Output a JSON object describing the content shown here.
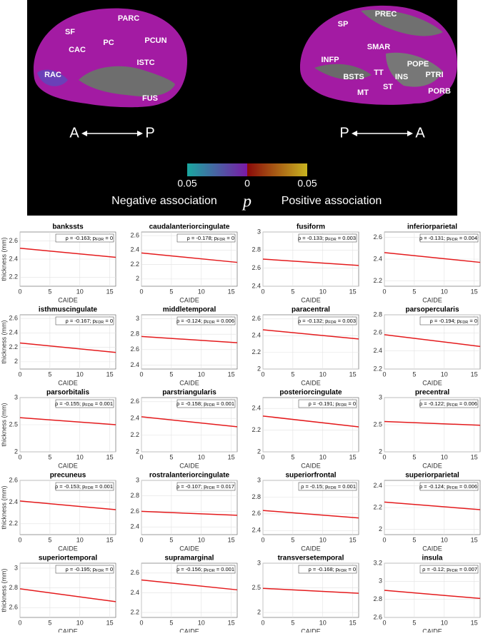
{
  "brain": {
    "left_labels": [
      "SF",
      "PARC",
      "CAC",
      "PC",
      "PCUN",
      "ISTC",
      "RAC",
      "FUS"
    ],
    "right_labels": [
      "SP",
      "PREC",
      "SMAR",
      "INFP",
      "POPE",
      "BSTS",
      "TT",
      "INS",
      "PTRI",
      "ST",
      "MT",
      "PORB"
    ],
    "left_orientation": [
      "A",
      "P"
    ],
    "right_orientation": [
      "P",
      "A"
    ],
    "colorbar_ticks": [
      "0.05",
      "0",
      "0.05"
    ],
    "negative_label": "Negative association",
    "symbol": "p",
    "positive_label": "Positive association"
  },
  "chart_data": [
    {
      "type": "scatter",
      "title": "bankssts",
      "annotation": {
        "text": "ρ = -0.163; p",
        "sub": "FDR",
        "tail": " = 0"
      },
      "ylabel": "thickness (mm)",
      "xlabel": "CAIDE",
      "xlim": [
        0,
        16
      ],
      "xticks": [
        0,
        5,
        10,
        15
      ],
      "ylim": [
        2.1,
        2.7
      ],
      "yticks": [
        2.2,
        2.4,
        2.6
      ],
      "grid": true,
      "fit": {
        "color": "#e41a1c",
        "x": [
          0,
          16
        ],
        "values": [
          2.52,
          2.42
        ]
      }
    },
    {
      "type": "scatter",
      "title": "caudalanteriorcingulate",
      "annotation": {
        "text": "ρ = -0.178; p",
        "sub": "FDR",
        "tail": " = 0"
      },
      "xlabel": "CAIDE",
      "xlim": [
        0,
        16
      ],
      "xticks": [
        0,
        5,
        10,
        15
      ],
      "ylim": [
        1.9,
        2.65
      ],
      "yticks": [
        2,
        2.2,
        2.4,
        2.6
      ],
      "grid": true,
      "fit": {
        "color": "#e41a1c",
        "x": [
          0,
          16
        ],
        "values": [
          2.36,
          2.23
        ]
      }
    },
    {
      "type": "scatter",
      "title": "fusiform",
      "annotation": {
        "text": "ρ = -0.133; p",
        "sub": "FDR",
        "tail": " = 0.003"
      },
      "xlabel": "CAIDE",
      "xlim": [
        0,
        16
      ],
      "xticks": [
        0,
        5,
        10,
        15
      ],
      "ylim": [
        2.4,
        3
      ],
      "yticks": [
        2.4,
        2.6,
        2.8,
        3
      ],
      "grid": true,
      "fit": {
        "color": "#e41a1c",
        "x": [
          0,
          16
        ],
        "values": [
          2.7,
          2.63
        ]
      }
    },
    {
      "type": "scatter",
      "title": "inferiorparietal",
      "annotation": {
        "text": "ρ = -0.131; p",
        "sub": "FDR",
        "tail": " = 0.004"
      },
      "xlabel": "CAIDE",
      "xlim": [
        0,
        16
      ],
      "xticks": [
        0,
        5,
        10,
        15
      ],
      "ylim": [
        2.15,
        2.65
      ],
      "yticks": [
        2.2,
        2.4,
        2.6
      ],
      "grid": true,
      "fit": {
        "color": "#e41a1c",
        "x": [
          0,
          16
        ],
        "values": [
          2.46,
          2.37
        ]
      }
    },
    {
      "type": "scatter",
      "title": "isthmuscingulate",
      "annotation": {
        "text": "ρ = -0.167; p",
        "sub": "FDR",
        "tail": " = 0"
      },
      "ylabel": "thickness (mm)",
      "xlabel": "CAIDE",
      "xlim": [
        0,
        16
      ],
      "xticks": [
        0,
        5,
        10,
        15
      ],
      "ylim": [
        1.9,
        2.65
      ],
      "yticks": [
        2,
        2.2,
        2.4,
        2.6
      ],
      "grid": true,
      "fit": {
        "color": "#e41a1c",
        "x": [
          0,
          16
        ],
        "values": [
          2.26,
          2.13
        ]
      }
    },
    {
      "type": "scatter",
      "title": "middletemporal",
      "annotation": {
        "text": "ρ = -0.124; p",
        "sub": "FDR",
        "tail": " = 0.006"
      },
      "xlabel": "CAIDE",
      "xlim": [
        0,
        16
      ],
      "xticks": [
        0,
        5,
        10,
        15
      ],
      "ylim": [
        2.35,
        3.05
      ],
      "yticks": [
        2.4,
        2.6,
        2.8,
        3
      ],
      "grid": true,
      "fit": {
        "color": "#e41a1c",
        "x": [
          0,
          16
        ],
        "values": [
          2.77,
          2.69
        ]
      }
    },
    {
      "type": "scatter",
      "title": "paracentral",
      "annotation": {
        "text": "ρ = -0.132; p",
        "sub": "FDR",
        "tail": " = 0.003"
      },
      "xlabel": "CAIDE",
      "xlim": [
        0,
        16
      ],
      "xticks": [
        0,
        5,
        10,
        15
      ],
      "ylim": [
        2,
        2.65
      ],
      "yticks": [
        2,
        2.2,
        2.4,
        2.6
      ],
      "grid": true,
      "fit": {
        "color": "#e41a1c",
        "x": [
          0,
          16
        ],
        "values": [
          2.47,
          2.36
        ]
      }
    },
    {
      "type": "scatter",
      "title": "parsopercularis",
      "annotation": {
        "text": "ρ = -0.194; p",
        "sub": "FDR",
        "tail": " = 0"
      },
      "xlabel": "CAIDE",
      "xlim": [
        0,
        16
      ],
      "xticks": [
        0,
        5,
        10,
        15
      ],
      "ylim": [
        2.2,
        2.8
      ],
      "yticks": [
        2.2,
        2.4,
        2.6,
        2.8
      ],
      "grid": true,
      "fit": {
        "color": "#e41a1c",
        "x": [
          0,
          16
        ],
        "values": [
          2.58,
          2.45
        ]
      }
    },
    {
      "type": "scatter",
      "title": "parsorbitalis",
      "annotation": {
        "text": "ρ = -0.155; p",
        "sub": "FDR",
        "tail": " = 0.001"
      },
      "ylabel": "thickness (mm)",
      "xlabel": "CAIDE",
      "xlim": [
        0,
        16
      ],
      "xticks": [
        0,
        5,
        10,
        15
      ],
      "ylim": [
        2,
        3
      ],
      "yticks": [
        2,
        2.5,
        3
      ],
      "grid": true,
      "fit": {
        "color": "#e41a1c",
        "x": [
          0,
          16
        ],
        "values": [
          2.63,
          2.5
        ]
      }
    },
    {
      "type": "scatter",
      "title": "parstriangularis",
      "annotation": {
        "text": "ρ = -0.158; p",
        "sub": "FDR",
        "tail": " = 0.001"
      },
      "xlabel": "CAIDE",
      "xlim": [
        0,
        16
      ],
      "xticks": [
        0,
        5,
        10,
        15
      ],
      "ylim": [
        2,
        2.65
      ],
      "yticks": [
        2,
        2.2,
        2.4,
        2.6
      ],
      "grid": true,
      "fit": {
        "color": "#e41a1c",
        "x": [
          0,
          16
        ],
        "values": [
          2.42,
          2.3
        ]
      }
    },
    {
      "type": "scatter",
      "title": "posteriorcingulate",
      "annotation": {
        "text": "ρ = -0.191; p",
        "sub": "FDR",
        "tail": " = 0"
      },
      "xlabel": "CAIDE",
      "xlim": [
        0,
        16
      ],
      "xticks": [
        0,
        5,
        10,
        15
      ],
      "ylim": [
        2,
        2.5
      ],
      "yticks": [
        2,
        2.2,
        2.4
      ],
      "grid": true,
      "fit": {
        "color": "#e41a1c",
        "x": [
          0,
          16
        ],
        "values": [
          2.33,
          2.23
        ]
      }
    },
    {
      "type": "scatter",
      "title": "precentral",
      "annotation": {
        "text": "ρ = -0.122; p",
        "sub": "FDR",
        "tail": " = 0.006"
      },
      "xlabel": "CAIDE",
      "xlim": [
        0,
        16
      ],
      "xticks": [
        0,
        5,
        10,
        15
      ],
      "ylim": [
        2,
        3
      ],
      "yticks": [
        2,
        2.5,
        3
      ],
      "grid": true,
      "fit": {
        "color": "#e41a1c",
        "x": [
          0,
          16
        ],
        "values": [
          2.56,
          2.49
        ]
      }
    },
    {
      "type": "scatter",
      "title": "precuneus",
      "annotation": {
        "text": "ρ = -0.153; p",
        "sub": "FDR",
        "tail": " = 0.001"
      },
      "ylabel": "thickness (mm)",
      "xlabel": "CAIDE",
      "xlim": [
        0,
        16
      ],
      "xticks": [
        0,
        5,
        10,
        15
      ],
      "ylim": [
        2.1,
        2.6
      ],
      "yticks": [
        2.2,
        2.4,
        2.6
      ],
      "grid": true,
      "fit": {
        "color": "#e41a1c",
        "x": [
          0,
          16
        ],
        "values": [
          2.41,
          2.33
        ]
      }
    },
    {
      "type": "scatter",
      "title": "rostralanteriorcingulate",
      "annotation": {
        "text": "ρ = -0.107; p",
        "sub": "FDR",
        "tail": " = 0.017"
      },
      "xlabel": "CAIDE",
      "xlim": [
        0,
        16
      ],
      "xticks": [
        0,
        5,
        10,
        15
      ],
      "ylim": [
        2.3,
        3
      ],
      "yticks": [
        2.4,
        2.6,
        2.8,
        3
      ],
      "grid": true,
      "fit": {
        "color": "#e41a1c",
        "x": [
          0,
          16
        ],
        "values": [
          2.6,
          2.55
        ]
      }
    },
    {
      "type": "scatter",
      "title": "superiorfrontal",
      "annotation": {
        "text": "ρ = -0.15; p",
        "sub": "FDR",
        "tail": " = 0.001"
      },
      "xlabel": "CAIDE",
      "xlim": [
        0,
        16
      ],
      "xticks": [
        0,
        5,
        10,
        15
      ],
      "ylim": [
        2.35,
        3
      ],
      "yticks": [
        2.4,
        2.6,
        2.8,
        3
      ],
      "grid": true,
      "fit": {
        "color": "#e41a1c",
        "x": [
          0,
          16
        ],
        "values": [
          2.64,
          2.55
        ]
      }
    },
    {
      "type": "scatter",
      "title": "superiorparietal",
      "annotation": {
        "text": "ρ = -0.124; p",
        "sub": "FDR",
        "tail": " = 0.006"
      },
      "xlabel": "CAIDE",
      "xlim": [
        0,
        16
      ],
      "xticks": [
        0,
        5,
        10,
        15
      ],
      "ylim": [
        1.95,
        2.45
      ],
      "yticks": [
        2,
        2.2,
        2.4
      ],
      "grid": true,
      "fit": {
        "color": "#e41a1c",
        "x": [
          0,
          16
        ],
        "values": [
          2.25,
          2.18
        ]
      }
    },
    {
      "type": "scatter",
      "title": "superiortemporal",
      "annotation": {
        "text": "ρ = -0.195; p",
        "sub": "FDR",
        "tail": " = 0"
      },
      "ylabel": "thickness (mm)",
      "xlabel": "CAIDE",
      "xlim": [
        0,
        16
      ],
      "xticks": [
        0,
        5,
        10,
        15
      ],
      "ylim": [
        2.5,
        3.05
      ],
      "yticks": [
        2.6,
        2.8,
        3
      ],
      "grid": true,
      "fit": {
        "color": "#e41a1c",
        "x": [
          0,
          16
        ],
        "values": [
          2.79,
          2.66
        ]
      }
    },
    {
      "type": "scatter",
      "title": "supramarginal",
      "annotation": {
        "text": "ρ = -0.156; p",
        "sub": "FDR",
        "tail": " = 0.001"
      },
      "xlabel": "CAIDE",
      "xlim": [
        0,
        16
      ],
      "xticks": [
        0,
        5,
        10,
        15
      ],
      "ylim": [
        2.15,
        2.7
      ],
      "yticks": [
        2.2,
        2.4,
        2.6
      ],
      "grid": true,
      "fit": {
        "color": "#e41a1c",
        "x": [
          0,
          16
        ],
        "values": [
          2.53,
          2.43
        ]
      }
    },
    {
      "type": "scatter",
      "title": "transversetemporal",
      "annotation": {
        "text": "ρ = -0.168; p",
        "sub": "FDR",
        "tail": " = 0"
      },
      "xlabel": "CAIDE",
      "xlim": [
        0,
        16
      ],
      "xticks": [
        0,
        5,
        10,
        15
      ],
      "ylim": [
        1.9,
        3
      ],
      "yticks": [
        2,
        2.5,
        3
      ],
      "grid": true,
      "fit": {
        "color": "#e41a1c",
        "x": [
          0,
          16
        ],
        "values": [
          2.49,
          2.39
        ]
      }
    },
    {
      "type": "scatter",
      "title": "insula",
      "annotation": {
        "text": "ρ = -0.12; p",
        "sub": "FDR",
        "tail": " = 0.007"
      },
      "xlabel": "CAIDE",
      "xlim": [
        0,
        16
      ],
      "xticks": [
        0,
        5,
        10,
        15
      ],
      "ylim": [
        2.6,
        3.2
      ],
      "yticks": [
        2.6,
        2.8,
        3,
        3.2
      ],
      "grid": true,
      "fit": {
        "color": "#e41a1c",
        "x": [
          0,
          16
        ],
        "values": [
          2.9,
          2.81
        ]
      }
    }
  ]
}
